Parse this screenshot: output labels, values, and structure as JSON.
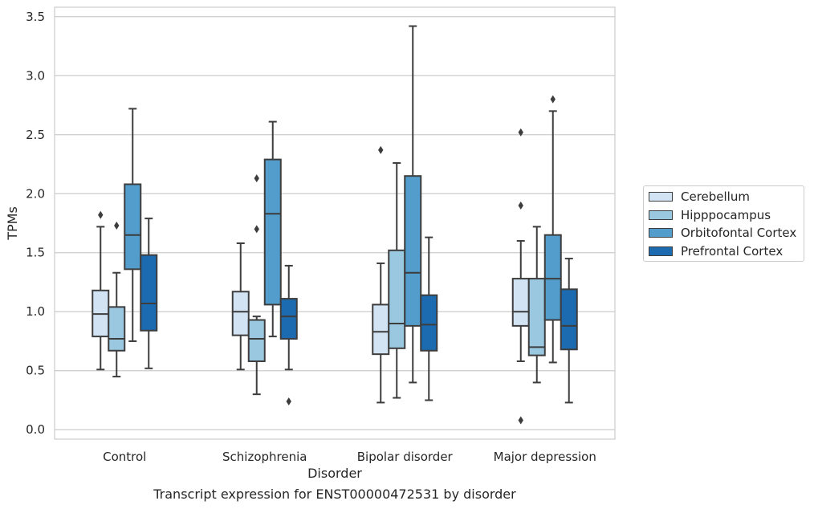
{
  "caption": "Transcript expression for ENST00000472531 by disorder",
  "chart_data": {
    "type": "box",
    "xlabel": "Disorder",
    "ylabel": "TPMs",
    "ylim": [
      -0.08,
      3.58
    ],
    "yticks": [
      "0.0",
      "0.5",
      "1.0",
      "1.5",
      "2.0",
      "2.5",
      "3.0",
      "3.5"
    ],
    "grid": "horizontal",
    "legend_position": "right",
    "categories": [
      "Control",
      "Schizophrenia",
      "Bipolar disorder",
      "Major depression"
    ],
    "series": [
      {
        "name": "Cerebellum",
        "color": "#d2e3f3",
        "boxes": [
          {
            "whislo": 0.51,
            "q1": 0.79,
            "med": 0.98,
            "q3": 1.18,
            "whishi": 1.72,
            "fliers": [
              1.82
            ]
          },
          {
            "whislo": 0.51,
            "q1": 0.8,
            "med": 1.0,
            "q3": 1.17,
            "whishi": 1.58,
            "fliers": []
          },
          {
            "whislo": 0.23,
            "q1": 0.64,
            "med": 0.83,
            "q3": 1.06,
            "whishi": 1.41,
            "fliers": [
              2.37
            ]
          },
          {
            "whislo": 0.58,
            "q1": 0.88,
            "med": 1.0,
            "q3": 1.28,
            "whishi": 1.6,
            "fliers": [
              2.52,
              1.9,
              0.08
            ]
          }
        ]
      },
      {
        "name": "Hipppocampus",
        "color": "#9ac8e0",
        "boxes": [
          {
            "whislo": 0.45,
            "q1": 0.67,
            "med": 0.77,
            "q3": 1.04,
            "whishi": 1.33,
            "fliers": [
              1.73
            ]
          },
          {
            "whislo": 0.3,
            "q1": 0.58,
            "med": 0.77,
            "q3": 0.93,
            "whishi": 0.96,
            "fliers": [
              2.13,
              1.7
            ]
          },
          {
            "whislo": 0.27,
            "q1": 0.69,
            "med": 0.9,
            "q3": 1.52,
            "whishi": 2.26,
            "fliers": []
          },
          {
            "whislo": 0.4,
            "q1": 0.63,
            "med": 0.7,
            "q3": 1.28,
            "whishi": 1.72,
            "fliers": []
          }
        ]
      },
      {
        "name": "Orbitofontal Cortex",
        "color": "#529dcc",
        "boxes": [
          {
            "whislo": 0.75,
            "q1": 1.36,
            "med": 1.65,
            "q3": 2.08,
            "whishi": 2.72,
            "fliers": []
          },
          {
            "whislo": 0.79,
            "q1": 1.06,
            "med": 1.83,
            "q3": 2.29,
            "whishi": 2.61,
            "fliers": []
          },
          {
            "whislo": 0.4,
            "q1": 0.88,
            "med": 1.33,
            "q3": 2.15,
            "whishi": 3.42,
            "fliers": []
          },
          {
            "whislo": 0.57,
            "q1": 0.93,
            "med": 1.28,
            "q3": 1.65,
            "whishi": 2.7,
            "fliers": [
              2.8
            ]
          }
        ]
      },
      {
        "name": "Prefrontal Cortex",
        "color": "#1c6aaf",
        "boxes": [
          {
            "whislo": 0.52,
            "q1": 0.84,
            "med": 1.07,
            "q3": 1.48,
            "whishi": 1.79,
            "fliers": []
          },
          {
            "whislo": 0.51,
            "q1": 0.77,
            "med": 0.96,
            "q3": 1.11,
            "whishi": 1.39,
            "fliers": [
              0.24
            ]
          },
          {
            "whislo": 0.25,
            "q1": 0.67,
            "med": 0.89,
            "q3": 1.14,
            "whishi": 1.63,
            "fliers": []
          },
          {
            "whislo": 0.23,
            "q1": 0.68,
            "med": 0.88,
            "q3": 1.19,
            "whishi": 1.45,
            "fliers": []
          }
        ]
      }
    ]
  }
}
